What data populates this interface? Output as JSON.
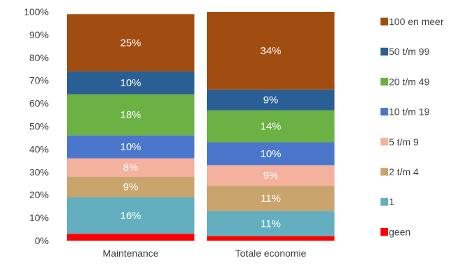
{
  "chart_data": {
    "type": "bar",
    "stacked": true,
    "categories": [
      "Maintenance",
      "Totale economie"
    ],
    "ylim": [
      0,
      100
    ],
    "ytick_labels": [
      "0%",
      "10%",
      "20%",
      "30%",
      "40%",
      "50%",
      "60%",
      "70%",
      "80%",
      "90%",
      "100%"
    ],
    "series": [
      {
        "name": "geen",
        "color": "#ff0000",
        "values": [
          3,
          2
        ],
        "labels": [
          "",
          ""
        ]
      },
      {
        "name": "1",
        "color": "#63aebf",
        "values": [
          16,
          11
        ],
        "labels": [
          "16%",
          "11%"
        ]
      },
      {
        "name": "2 t/m 4",
        "color": "#c9a46c",
        "values": [
          9,
          11
        ],
        "labels": [
          "9%",
          "11%"
        ]
      },
      {
        "name": "5 t/m 9",
        "color": "#f4b19e",
        "values": [
          8,
          9
        ],
        "labels": [
          "8%",
          "9%"
        ]
      },
      {
        "name": "10 t/m 19",
        "color": "#4a77cb",
        "values": [
          10,
          10
        ],
        "labels": [
          "10%",
          "10%"
        ]
      },
      {
        "name": "20 t/m 49",
        "color": "#6cb144",
        "values": [
          18,
          14
        ],
        "labels": [
          "18%",
          "14%"
        ]
      },
      {
        "name": "50 t/m 99",
        "color": "#2a5f95",
        "values": [
          10,
          9
        ],
        "labels": [
          "10%",
          "9%"
        ]
      },
      {
        "name": "100 en meer",
        "color": "#a14d12",
        "values": [
          25,
          34
        ],
        "labels": [
          "25%",
          "34%"
        ]
      }
    ],
    "legend_position": "right",
    "grid": false
  }
}
